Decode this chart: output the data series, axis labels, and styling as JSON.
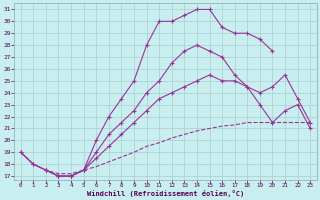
{
  "xlabel": "Windchill (Refroidissement éolien,°C)",
  "bg_color": "#c8eef0",
  "grid_color": "#aacccc",
  "line_color": "#993399",
  "xlim_min": -0.5,
  "xlim_max": 23.5,
  "ylim_min": 16.7,
  "ylim_max": 31.5,
  "xticks": [
    0,
    1,
    2,
    3,
    4,
    5,
    6,
    7,
    8,
    9,
    10,
    11,
    12,
    13,
    14,
    15,
    16,
    17,
    18,
    19,
    20,
    21,
    22,
    23
  ],
  "yticks": [
    17,
    18,
    19,
    20,
    21,
    22,
    23,
    24,
    25,
    26,
    27,
    28,
    29,
    30,
    31
  ],
  "line1_x": [
    0,
    1,
    2,
    3,
    4,
    5,
    6,
    7,
    8,
    9,
    10,
    11,
    12,
    13,
    14,
    15,
    16,
    17,
    18,
    19,
    20
  ],
  "line1_y": [
    19.0,
    18.0,
    17.5,
    17.0,
    17.0,
    17.5,
    20.0,
    22.0,
    23.5,
    25.0,
    28.0,
    30.0,
    30.0,
    30.5,
    31.0,
    31.0,
    29.5,
    29.0,
    29.0,
    28.5,
    27.5
  ],
  "line2_x": [
    2,
    3,
    4,
    5,
    6,
    7,
    8,
    9,
    10,
    11,
    12,
    13,
    14,
    15,
    16,
    17,
    18,
    19,
    20,
    21,
    22,
    23
  ],
  "line2_y": [
    17.5,
    17.0,
    17.0,
    17.5,
    19.0,
    20.5,
    21.5,
    22.5,
    24.0,
    25.0,
    26.5,
    27.5,
    28.0,
    27.5,
    27.0,
    25.5,
    24.5,
    23.0,
    21.5,
    22.5,
    23.0,
    21.0
  ],
  "line3_x": [
    0,
    1,
    2,
    3,
    4,
    5,
    6,
    7,
    8,
    9,
    10,
    11,
    12,
    13,
    14,
    15,
    16,
    17,
    18,
    19,
    20,
    21,
    22,
    23
  ],
  "line3_y": [
    19.0,
    18.0,
    17.5,
    17.0,
    17.0,
    17.5,
    18.5,
    19.5,
    20.5,
    21.5,
    22.5,
    23.5,
    24.0,
    24.5,
    25.0,
    25.5,
    25.0,
    25.0,
    24.5,
    24.0,
    24.5,
    25.5,
    23.5,
    21.5
  ],
  "line4_x": [
    0,
    1,
    2,
    3,
    4,
    5,
    6,
    7,
    8,
    9,
    10,
    11,
    12,
    13,
    14,
    15,
    16,
    17,
    18,
    19,
    20,
    21,
    22,
    23
  ],
  "line4_y": [
    19.0,
    18.0,
    17.5,
    17.2,
    17.2,
    17.5,
    17.8,
    18.2,
    18.6,
    19.0,
    19.5,
    19.8,
    20.2,
    20.5,
    20.8,
    21.0,
    21.2,
    21.3,
    21.5,
    21.5,
    21.5,
    21.5,
    21.5,
    21.5
  ]
}
